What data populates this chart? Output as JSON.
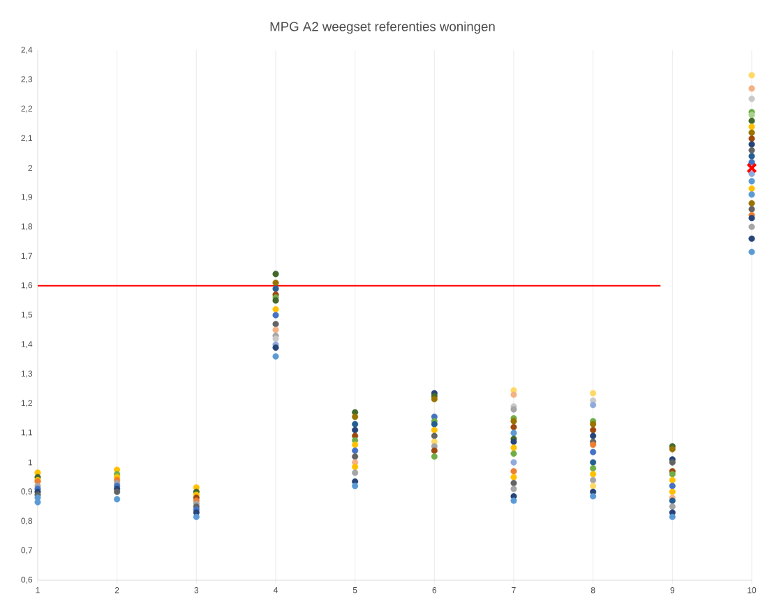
{
  "chart_data": {
    "type": "scatter",
    "title": "MPG A2 weegset referenties woningen",
    "xlim": [
      1,
      10
    ],
    "xticks": [
      1,
      2,
      3,
      4,
      5,
      6,
      7,
      8,
      9,
      10
    ],
    "ylim": [
      0.6,
      2.4
    ],
    "yticks": [
      {
        "value": 0.6,
        "label": "0,6"
      },
      {
        "value": 0.7,
        "label": "0,7"
      },
      {
        "value": 0.8,
        "label": "0,8"
      },
      {
        "value": 0.9,
        "label": "0,9"
      },
      {
        "value": 1,
        "label": "1"
      },
      {
        "value": 1.1,
        "label": "1,1"
      },
      {
        "value": 1.2,
        "label": "1,2"
      },
      {
        "value": 1.3,
        "label": "1,3"
      },
      {
        "value": 1.4,
        "label": "1,4"
      },
      {
        "value": 1.5,
        "label": "1,5"
      },
      {
        "value": 1.6,
        "label": "1,6"
      },
      {
        "value": 1.7,
        "label": "1,7"
      },
      {
        "value": 1.8,
        "label": "1,8"
      },
      {
        "value": 1.9,
        "label": "1,9"
      },
      {
        "value": 2,
        "label": "2"
      },
      {
        "value": 2.1,
        "label": "2,1"
      },
      {
        "value": 2.2,
        "label": "2,2"
      },
      {
        "value": 2.3,
        "label": "2,3"
      },
      {
        "value": 2.4,
        "label": "2,4"
      }
    ],
    "grid": "x",
    "marker": "circle",
    "series": [
      {
        "x": [
          1,
          1,
          1,
          1,
          1,
          1,
          1,
          1,
          1,
          1
        ],
        "values": [
          0.965,
          0.95,
          0.94,
          0.935,
          0.92,
          0.91,
          0.9,
          0.89,
          0.88,
          0.865
        ],
        "colors": [
          "#ffc000",
          "#43682b",
          "#ffc000",
          "#ed7d31",
          "#a5a5a5",
          "#4472c4",
          "#264478",
          "#636363",
          "#5b9bd5",
          "#5b9bd5"
        ]
      },
      {
        "x": [
          2,
          2,
          2,
          2,
          2,
          2,
          2,
          2,
          2
        ],
        "values": [
          0.975,
          0.96,
          0.95,
          0.94,
          0.93,
          0.92,
          0.91,
          0.9,
          0.875
        ],
        "colors": [
          "#ffc000",
          "#70ad47",
          "#ffc000",
          "#ed7d31",
          "#a5a5a5",
          "#4472c4",
          "#264478",
          "#636363",
          "#5b9bd5"
        ]
      },
      {
        "x": [
          3,
          3,
          3,
          3,
          3,
          3,
          3,
          3,
          3,
          3
        ],
        "values": [
          0.915,
          0.9,
          0.89,
          0.88,
          0.87,
          0.86,
          0.85,
          0.84,
          0.83,
          0.815
        ],
        "colors": [
          "#ffc000",
          "#43682b",
          "#ffc000",
          "#9e480e",
          "#ed7d31",
          "#a5a5a5",
          "#636363",
          "#4472c4",
          "#264478",
          "#5b9bd5"
        ]
      },
      {
        "x": [
          4,
          4,
          4,
          4,
          4,
          4,
          4,
          4,
          4,
          4,
          4,
          4,
          4,
          4,
          4
        ],
        "values": [
          1.64,
          1.61,
          1.59,
          1.57,
          1.56,
          1.55,
          1.52,
          1.5,
          1.47,
          1.45,
          1.43,
          1.42,
          1.4,
          1.39,
          1.36
        ],
        "colors": [
          "#43682b",
          "#997300",
          "#255e91",
          "#9e480e",
          "#70ad47",
          "#43682b",
          "#ffc000",
          "#4472c4",
          "#636363",
          "#f4b183",
          "#a5a5a5",
          "#c9c9c9",
          "#8faadc",
          "#264478",
          "#5b9bd5"
        ]
      },
      {
        "x": [
          5,
          5,
          5,
          5,
          5,
          5,
          5,
          5,
          5,
          5,
          5,
          5,
          5,
          5
        ],
        "values": [
          1.17,
          1.155,
          1.13,
          1.11,
          1.09,
          1.075,
          1.06,
          1.04,
          1.02,
          1.0,
          0.985,
          0.965,
          0.935,
          0.92
        ],
        "colors": [
          "#43682b",
          "#997300",
          "#255e91",
          "#264478",
          "#9e480e",
          "#70ad47",
          "#ffc000",
          "#4472c4",
          "#636363",
          "#f4b183",
          "#ffc000",
          "#a5a5a5",
          "#264478",
          "#5b9bd5"
        ]
      },
      {
        "x": [
          6,
          6,
          6,
          6,
          6,
          6,
          6,
          6,
          6,
          6,
          6,
          6
        ],
        "values": [
          1.235,
          1.225,
          1.215,
          1.155,
          1.14,
          1.13,
          1.11,
          1.09,
          1.07,
          1.055,
          1.04,
          1.02
        ],
        "colors": [
          "#264478",
          "#43682b",
          "#997300",
          "#4472c4",
          "#70ad47",
          "#255e91",
          "#ffc000",
          "#636363",
          "#ffd966",
          "#a5a5a5",
          "#9e480e",
          "#70ad47"
        ]
      },
      {
        "x": [
          7,
          7,
          7,
          7,
          7,
          7,
          7,
          7,
          7,
          7,
          7,
          7,
          7,
          7,
          7,
          7,
          7,
          7,
          7
        ],
        "values": [
          1.245,
          1.23,
          1.19,
          1.18,
          1.15,
          1.14,
          1.12,
          1.1,
          1.08,
          1.07,
          1.05,
          1.03,
          1.0,
          0.97,
          0.95,
          0.93,
          0.91,
          0.885,
          0.87
        ],
        "colors": [
          "#ffd966",
          "#f4b183",
          "#c9c9c9",
          "#a5a5a5",
          "#70ad47",
          "#997300",
          "#9e480e",
          "#5b9bd5",
          "#43682b",
          "#264478",
          "#ffc000",
          "#70ad47",
          "#8faadc",
          "#ed7d31",
          "#ffc000",
          "#636363",
          "#a5a5a5",
          "#264478",
          "#5b9bd5"
        ]
      },
      {
        "x": [
          8,
          8,
          8,
          8,
          8,
          8,
          8,
          8,
          8,
          8,
          8,
          8,
          8,
          8,
          8,
          8,
          8
        ],
        "values": [
          1.235,
          1.21,
          1.195,
          1.14,
          1.13,
          1.11,
          1.09,
          1.07,
          1.06,
          1.035,
          1.0,
          0.98,
          0.96,
          0.94,
          0.92,
          0.9,
          0.885
        ],
        "colors": [
          "#ffd966",
          "#c9c9c9",
          "#8faadc",
          "#70ad47",
          "#997300",
          "#9e480e",
          "#264478",
          "#636363",
          "#ed7d31",
          "#4472c4",
          "#255e91",
          "#70ad47",
          "#ffc000",
          "#a5a5a5",
          "#ffd966",
          "#264478",
          "#5b9bd5"
        ]
      },
      {
        "x": [
          9,
          9,
          9,
          9,
          9,
          9,
          9,
          9,
          9,
          9,
          9,
          9,
          9,
          9
        ],
        "values": [
          1.055,
          1.045,
          1.01,
          1.0,
          0.97,
          0.96,
          0.94,
          0.92,
          0.9,
          0.88,
          0.87,
          0.85,
          0.83,
          0.815
        ],
        "colors": [
          "#43682b",
          "#997300",
          "#264478",
          "#636363",
          "#9e480e",
          "#70ad47",
          "#ffc000",
          "#4472c4",
          "#ffc000",
          "#f4b183",
          "#255e91",
          "#a5a5a5",
          "#264478",
          "#5b9bd5"
        ]
      },
      {
        "x": [
          10,
          10,
          10,
          10,
          10,
          10,
          10,
          10,
          10,
          10,
          10,
          10,
          10,
          10,
          10,
          10,
          10,
          10,
          10,
          10,
          10,
          10,
          10,
          10
        ],
        "values": [
          2.315,
          2.27,
          2.235,
          2.19,
          2.18,
          2.16,
          2.14,
          2.12,
          2.1,
          2.08,
          2.06,
          2.04,
          2.02,
          1.98,
          1.955,
          1.93,
          1.91,
          1.88,
          1.86,
          1.84,
          1.83,
          1.8,
          1.76,
          1.715
        ],
        "colors": [
          "#ffd966",
          "#f4b183",
          "#c9c9c9",
          "#70ad47",
          "#a9d18e",
          "#43682b",
          "#ffc000",
          "#997300",
          "#9e480e",
          "#264478",
          "#636363",
          "#255e91",
          "#4472c4",
          "#8faadc",
          "#5b9bd5",
          "#ffc000",
          "#5b9bd5",
          "#997300",
          "#636363",
          "#ed7d31",
          "#264478",
          "#a5a5a5",
          "#264478",
          "#5b9bd5"
        ]
      },
      {
        "type": "line",
        "x": [
          1,
          8.85
        ],
        "values": [
          1.6,
          1.6
        ],
        "color": "#ff0000",
        "marker": "none"
      },
      {
        "x": [
          10
        ],
        "values": [
          2.0
        ],
        "color": "#ff0000",
        "marker": "cross"
      }
    ]
  }
}
